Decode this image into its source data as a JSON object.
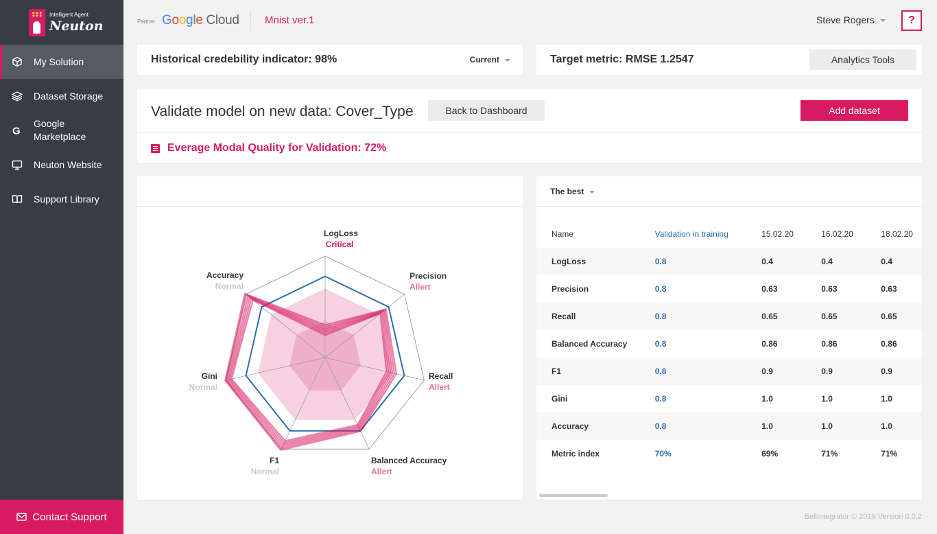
{
  "brand": {
    "tagline": "Intelligent Agent",
    "name": "Neuton"
  },
  "sidebar": {
    "items": [
      {
        "label": "My Solution",
        "icon": "cube-icon",
        "active": true
      },
      {
        "label": "Dataset Storage",
        "icon": "layers-icon",
        "active": false
      },
      {
        "label": "Google Marketplace",
        "icon": "google-icon",
        "active": false
      },
      {
        "label": "Neuton Website",
        "icon": "monitor-icon",
        "active": false
      },
      {
        "label": "Support Library",
        "icon": "book-icon",
        "active": false
      }
    ],
    "contact_label": "Contact Support"
  },
  "header": {
    "partner_label": "Partner",
    "google_cloud": "Google Cloud",
    "project": "Mnist ver.1",
    "user": "Steve Rogers",
    "help": "?"
  },
  "credibility": {
    "label": "Historical credebility indicator: 98%",
    "selector": "Current"
  },
  "target": {
    "label": "Target metric: RMSE 1.2547",
    "button": "Analytics Tools"
  },
  "validate": {
    "title": "Validate model on new data: Cover_Type",
    "back_button": "Back to Dashboard",
    "add_button": "Add dataset",
    "quality": "Everage Modal Quality for Validation: 72%"
  },
  "radar": {
    "axes": [
      {
        "name": "LogLoss",
        "status": "Critical"
      },
      {
        "name": "Precision",
        "status": "Allert"
      },
      {
        "name": "Recall",
        "status": "Allert"
      },
      {
        "name": "Balanced Accuracy",
        "status": "Allert"
      },
      {
        "name": "F1",
        "status": "Normal"
      },
      {
        "name": "Gini",
        "status": "Normal"
      },
      {
        "name": "Accuracy",
        "status": "Normal"
      }
    ],
    "colors": {
      "critical": "#d81b60",
      "allert": "#e57399",
      "normal": "#c8ccd2",
      "reference": "#2a6fb0",
      "series": "#d81b60"
    }
  },
  "table": {
    "selector": "The best",
    "columns": [
      "Name",
      "Validation in training",
      "15.02.20",
      "16.02.20",
      "18.02.20"
    ],
    "rows": [
      {
        "name": "LogLoss",
        "values": [
          "0.8",
          "0.4",
          "0.4",
          "0.4"
        ]
      },
      {
        "name": "Precision",
        "values": [
          "0.8",
          "0.63",
          "0.63",
          "0.63"
        ]
      },
      {
        "name": "Recall",
        "values": [
          "0.8",
          "0.65",
          "0.65",
          "0.65"
        ]
      },
      {
        "name": "Balanced Accuracy",
        "values": [
          "0.8",
          "0.86",
          "0.86",
          "0.86"
        ]
      },
      {
        "name": "F1",
        "values": [
          "0.8",
          "0.9",
          "0.9",
          "0.9"
        ]
      },
      {
        "name": "Gini",
        "values": [
          "0.8",
          "1.0",
          "1.0",
          "1.0"
        ]
      },
      {
        "name": "Accuracy",
        "values": [
          "0.8",
          "1.0",
          "1.0",
          "1.0"
        ]
      },
      {
        "name": "Metric index",
        "values": [
          "70%",
          "69%",
          "71%",
          "71%"
        ]
      }
    ]
  },
  "footer": "BellIntegrator © 2019 Version 0.0.2"
}
